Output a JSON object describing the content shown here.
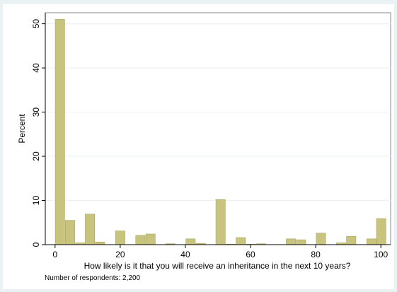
{
  "chart_data": {
    "type": "bar",
    "xlabel": "How likely is it that you will receive an inheritance in the next 10 years?",
    "ylabel": "Percent",
    "note": "Number of respondents: 2,200",
    "xlim": [
      -3,
      103
    ],
    "ylim": [
      0,
      52.5
    ],
    "bin_width": 3.1,
    "x_ticks": [
      0,
      20,
      40,
      60,
      80,
      100
    ],
    "y_ticks": [
      0,
      10,
      20,
      30,
      40,
      50
    ],
    "grid": true,
    "bar_color": "#c8c37d",
    "bar_edge": "#a8a463",
    "bins": [
      {
        "x": 1.5,
        "value": 51.0
      },
      {
        "x": 4.6,
        "value": 5.5
      },
      {
        "x": 7.7,
        "value": 0.4
      },
      {
        "x": 10.7,
        "value": 6.9
      },
      {
        "x": 13.8,
        "value": 0.6
      },
      {
        "x": 16.9,
        "value": 0.0
      },
      {
        "x": 20.0,
        "value": 3.1
      },
      {
        "x": 23.1,
        "value": 0.0
      },
      {
        "x": 26.2,
        "value": 2.1
      },
      {
        "x": 29.3,
        "value": 2.4
      },
      {
        "x": 32.3,
        "value": 0.0
      },
      {
        "x": 35.4,
        "value": 0.2
      },
      {
        "x": 38.5,
        "value": 0.0
      },
      {
        "x": 41.6,
        "value": 1.3
      },
      {
        "x": 44.7,
        "value": 0.3
      },
      {
        "x": 47.7,
        "value": 0.0
      },
      {
        "x": 50.8,
        "value": 10.2
      },
      {
        "x": 53.9,
        "value": 0.1
      },
      {
        "x": 57.0,
        "value": 1.6
      },
      {
        "x": 60.1,
        "value": 0.1
      },
      {
        "x": 63.2,
        "value": 0.2
      },
      {
        "x": 66.2,
        "value": 0.0
      },
      {
        "x": 69.3,
        "value": 0.0
      },
      {
        "x": 72.4,
        "value": 1.3
      },
      {
        "x": 75.5,
        "value": 1.1
      },
      {
        "x": 78.6,
        "value": 0.0
      },
      {
        "x": 81.6,
        "value": 2.6
      },
      {
        "x": 84.7,
        "value": 0.0
      },
      {
        "x": 87.8,
        "value": 0.4
      },
      {
        "x": 90.9,
        "value": 1.9
      },
      {
        "x": 94.0,
        "value": 0.0
      },
      {
        "x": 97.1,
        "value": 1.3
      },
      {
        "x": 100.1,
        "value": 5.9
      }
    ]
  }
}
